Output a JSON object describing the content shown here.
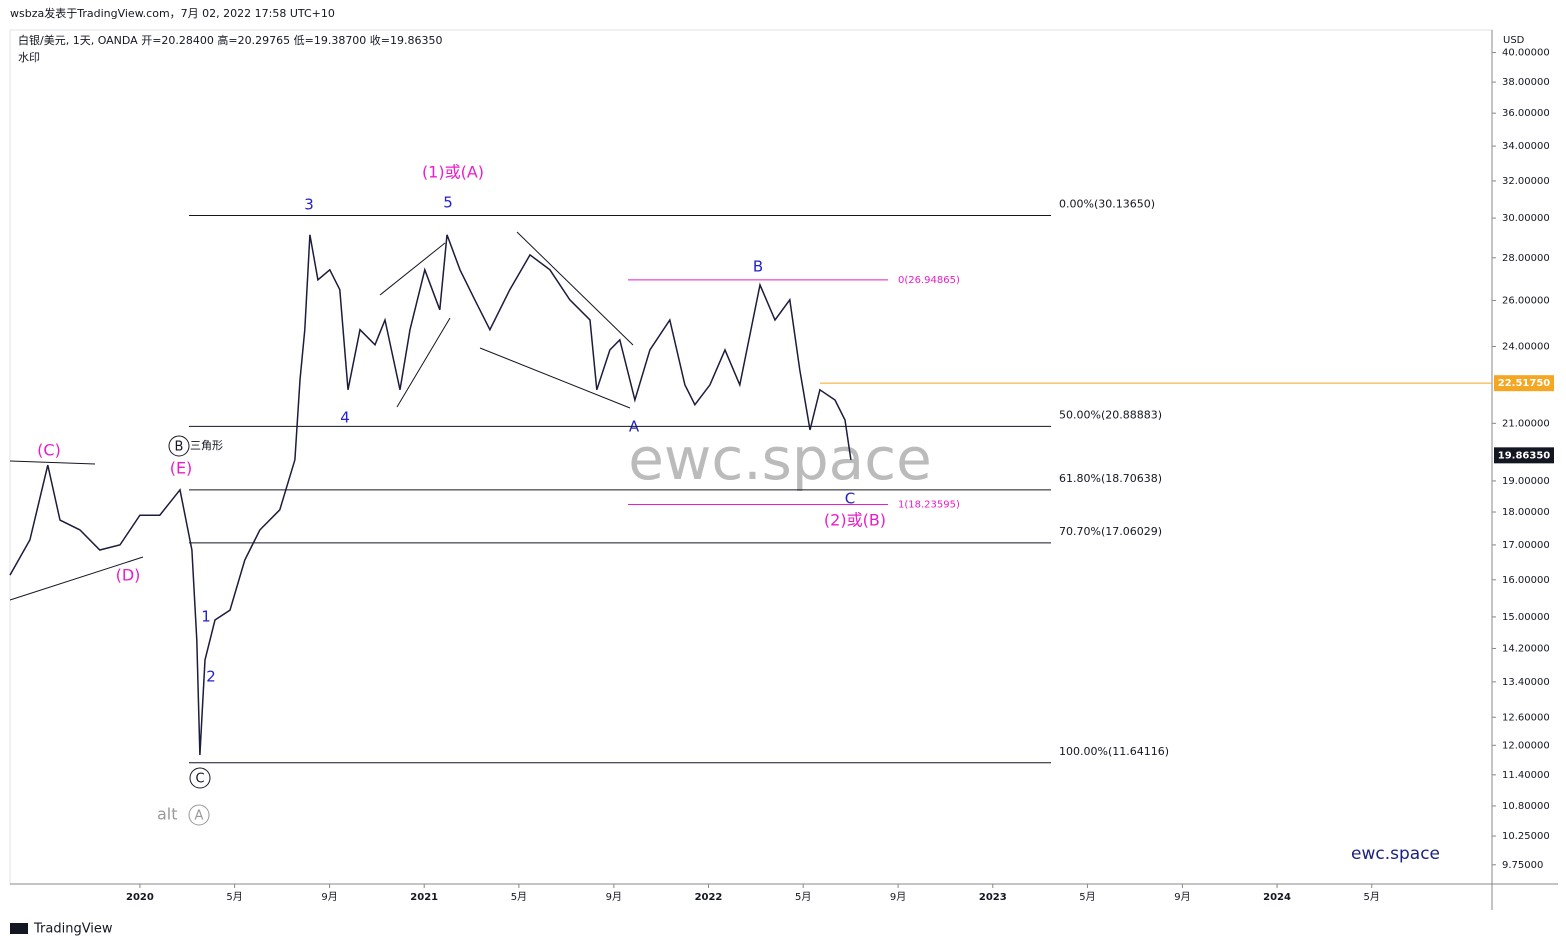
{
  "header": {
    "author_line": "wsbza发表于TradingView.com，7月 02, 2022 17:58 UTC+10",
    "symbol_line": "白银/美元, 1天, OANDA  开=20.28400  高=20.29765  低=19.38700  收=19.86350",
    "watermark_label": "水印"
  },
  "footer": "TradingView",
  "chart_data": {
    "type": "line",
    "color": "#1c1c3c",
    "log_scale": true,
    "currency": "USD",
    "x": [
      2019.543,
      2019.613,
      2019.676,
      2019.719,
      2019.789,
      2019.859,
      2019.93,
      2020.0,
      2020.07,
      2020.141,
      2020.183,
      2020.2,
      2020.211,
      2020.229,
      2020.264,
      2020.317,
      2020.369,
      2020.422,
      2020.492,
      2020.545,
      2020.563,
      2020.58,
      2020.598,
      2020.626,
      2020.668,
      2020.703,
      2020.732,
      2020.774,
      2020.827,
      2020.862,
      2020.915,
      2020.95,
      2021.002,
      2021.055,
      2021.08,
      2021.126,
      2021.178,
      2021.231,
      2021.301,
      2021.372,
      2021.442,
      2021.512,
      2021.583,
      2021.607,
      2021.653,
      2021.688,
      2021.741,
      2021.794,
      2021.864,
      2021.917,
      2021.952,
      2022.005,
      2022.058,
      2022.11,
      2022.181,
      2022.234,
      2022.286,
      2022.321,
      2022.357,
      2022.392,
      2022.445,
      2022.48,
      2022.501
    ],
    "values": [
      16.13,
      17.15,
      19.53,
      17.75,
      17.45,
      16.85,
      17.0,
      17.9,
      17.9,
      18.71,
      16.85,
      14.41,
      11.8,
      13.92,
      14.92,
      15.18,
      16.56,
      17.45,
      18.07,
      19.71,
      22.65,
      24.71,
      29.14,
      26.95,
      27.42,
      26.49,
      22.26,
      24.71,
      24.07,
      25.13,
      22.26,
      24.71,
      27.42,
      25.58,
      29.14,
      27.42,
      26.03,
      24.71,
      26.49,
      28.14,
      27.42,
      26.03,
      25.13,
      22.26,
      23.86,
      24.28,
      21.87,
      23.86,
      25.13,
      22.45,
      21.69,
      22.45,
      23.86,
      22.45,
      26.71,
      25.13,
      26.03,
      23.04,
      20.76,
      22.26,
      21.87,
      21.12,
      19.71
    ],
    "xlim": [
      2019.543,
      2024.756
    ],
    "xticks": [
      2020,
      {
        "value": 2020.333,
        "label": "5月"
      },
      {
        "value": 2020.667,
        "label": "9月"
      },
      2021,
      {
        "value": 2021.333,
        "label": "5月"
      },
      {
        "value": 2021.667,
        "label": "9月"
      },
      2022,
      {
        "value": 2022.333,
        "label": "5月"
      },
      {
        "value": 2022.667,
        "label": "9月"
      },
      2023,
      {
        "value": 2023.333,
        "label": "5月"
      },
      {
        "value": 2023.667,
        "label": "9月"
      },
      2024,
      {
        "value": 2024.333,
        "label": "5月"
      }
    ],
    "ylim": [
      9.43,
      41.6
    ],
    "yticks": [
      {
        "value": 40,
        "label": "40.00000"
      },
      {
        "value": 38,
        "label": "38.00000"
      },
      {
        "value": 36,
        "label": "36.00000"
      },
      {
        "value": 34,
        "label": "34.00000"
      },
      {
        "value": 32,
        "label": "32.00000"
      },
      {
        "value": 30,
        "label": "30.00000"
      },
      {
        "value": 28,
        "label": "28.00000"
      },
      {
        "value": 26,
        "label": "26.00000"
      },
      {
        "value": 24,
        "label": "24.00000"
      },
      {
        "value": 21,
        "label": "21.00000"
      },
      {
        "value": 19,
        "label": "19.00000"
      },
      {
        "value": 18,
        "label": "18.00000"
      },
      {
        "value": 17,
        "label": "17.00000"
      },
      {
        "value": 16,
        "label": "16.00000"
      },
      {
        "value": 15,
        "label": "15.00000"
      },
      {
        "value": 14.2,
        "label": "14.20000"
      },
      {
        "value": 13.4,
        "label": "13.40000"
      },
      {
        "value": 12.6,
        "label": "12.60000"
      },
      {
        "value": 12,
        "label": "12.00000"
      },
      {
        "value": 11.4,
        "label": "11.40000"
      },
      {
        "value": 10.8,
        "label": "10.80000"
      },
      {
        "value": 10.25,
        "label": "10.25000"
      },
      {
        "value": 9.75,
        "label": "9.75000"
      }
    ],
    "levels": [
      {
        "value": 30.1365,
        "label": "0.00%(30.13650)",
        "color": "#131722"
      },
      {
        "value": 20.88883,
        "label": "50.00%(20.88883)",
        "color": "#131722"
      },
      {
        "value": 18.70638,
        "label": "61.80%(18.70638)",
        "color": "#131722"
      },
      {
        "value": 17.06029,
        "label": "70.70%(17.06029)",
        "color": "#131722"
      },
      {
        "value": 11.64116,
        "label": "100.00%(11.64116)",
        "color": "#131722"
      },
      {
        "value": 26.94865,
        "label": "0(26.94865)",
        "color": "#e91ec8"
      },
      {
        "value": 18.23595,
        "label": "1(18.23595)",
        "color": "#e91ec8"
      }
    ],
    "price_lines": [
      {
        "value": 22.5175,
        "label": "22.51750",
        "color": "#f5a623"
      },
      {
        "value": 19.8635,
        "label": "19.86350",
        "color": "#131722"
      }
    ],
    "annotations": [
      "(1)或(A)",
      "3",
      "5",
      "4",
      "A",
      "B",
      "C",
      "(2)或(B)",
      "1",
      "2",
      "(C)",
      "(E)",
      "(D)",
      "B",
      "三角形",
      "C",
      "alt",
      "A"
    ],
    "watermark": "ewc.space",
    "brand": "ewc.space"
  }
}
